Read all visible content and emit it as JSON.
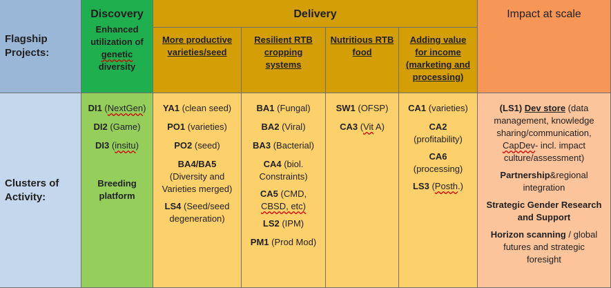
{
  "header": {
    "flagship_label": [
      "Flagship",
      "Projects:"
    ],
    "discovery": {
      "title": "Discovery",
      "subtitle_lines": [
        "Enhanced",
        "utilization of"
      ],
      "subtitle_underlined": "genetic",
      "subtitle_last": "diversity"
    },
    "delivery": {
      "title": "Delivery",
      "columns": [
        {
          "lines": [
            "More productive",
            "varieties/seed"
          ]
        },
        {
          "lines": [
            "Resilient RTB",
            "cropping",
            "systems"
          ]
        },
        {
          "lines": [
            "Nutritious RTB",
            "food"
          ]
        },
        {
          "lines": [
            "Adding value",
            "for income",
            "(marketing and",
            "processing)"
          ]
        }
      ]
    },
    "impact": {
      "title": "Impact at scale"
    }
  },
  "rows": {
    "clusters_label": [
      "Clusters of",
      "Activity:"
    ]
  },
  "discovery_items": [
    {
      "code": "DI1",
      "note": "(",
      "note_sq": "NextGen",
      "note_end": ")"
    },
    {
      "code": "DI2",
      "note": "(Game)"
    },
    {
      "code": "DI3",
      "note": "(",
      "note_sq": "insitu",
      "note_end": ")"
    },
    {
      "code": "Breeding",
      "code2": "platform"
    }
  ],
  "productive_items": [
    {
      "code": "YA1",
      "note": "(clean seed)"
    },
    {
      "code": "PO1",
      "note": "(varieties)"
    },
    {
      "code": "PO2",
      "note": "(seed)"
    },
    {
      "code": "BA4/BA5",
      "lines": [
        "(Diversity and",
        "Varieties merged)"
      ]
    },
    {
      "code": "LS4",
      "note": "(Seed/seed",
      "lines": [
        "degeneration)"
      ]
    }
  ],
  "resilient_items": [
    {
      "code": "BA1",
      "note": "(Fungal)"
    },
    {
      "code": "BA2",
      "note": "(Viral)"
    },
    {
      "code": "BA3",
      "note": "(Bacterial)"
    },
    {
      "code": "CA4",
      "note": "(biol.",
      "lines": [
        "Constraints)"
      ]
    },
    {
      "code": "CA5",
      "note": "(CMD,",
      "lines": [
        "CBSD, etc)"
      ]
    },
    {
      "code": "LS2",
      "note": "(IPM)"
    },
    {
      "code": "PM1",
      "note": "(Prod Mod)"
    }
  ],
  "nutritious_items": [
    {
      "code": "SW1",
      "note": "(OFSP)"
    },
    {
      "code": "CA3",
      "note": "(",
      "note_sq": "Vit",
      "note_end": " A)"
    }
  ],
  "value_items": [
    {
      "code": "CA1",
      "note": "(varieties)"
    },
    {
      "code": "CA2",
      "lines": [
        "(profitability)"
      ]
    },
    {
      "code": "CA6",
      "lines": [
        "(processing)"
      ]
    },
    {
      "code": "LS3",
      "note": "(",
      "note_sq": "Posth",
      "note_end": ".)"
    }
  ],
  "impact_items": {
    "ls1_code": "(LS1)",
    "ls1_title": "Dev store",
    "ls1_first": "(data",
    "ls1_lines": [
      "management, knowledge",
      "sharing/communication,"
    ],
    "ls1_capdev": "CapDev",
    "ls1_capdev_rest": "- incl. impact",
    "ls1_last": "culture/assessment)",
    "partnership_bold": "Partnership",
    "partnership_rest": "&regional",
    "partnership_line2": "integration",
    "gender_lines": [
      "Strategic Gender Research",
      "and Support"
    ],
    "horizon_bold": "Horizon scanning",
    "horizon_rest": " / global",
    "horizon_lines": [
      "futures and strategic",
      "foresight"
    ]
  }
}
